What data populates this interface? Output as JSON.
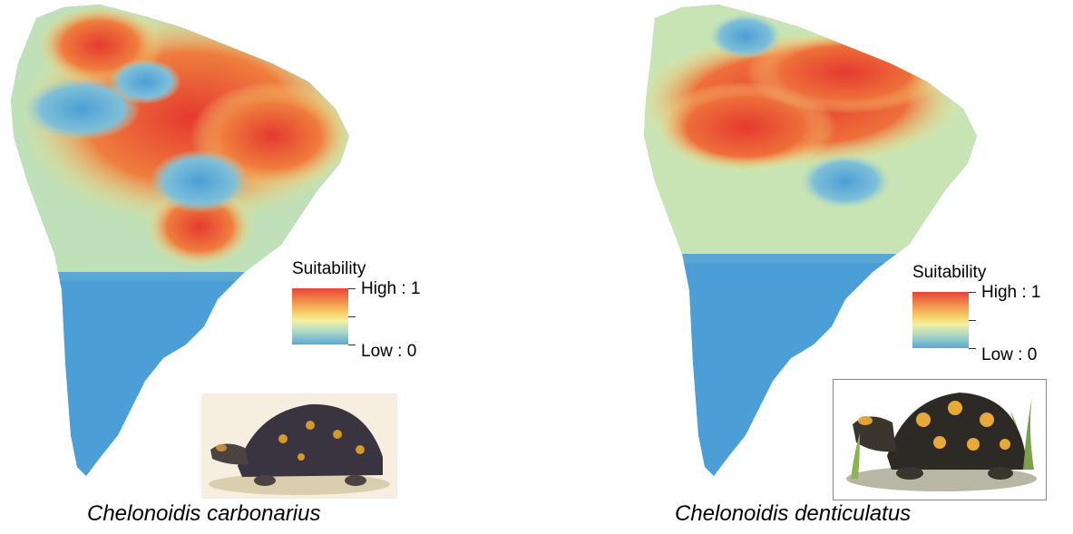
{
  "colors": {
    "low": "#4b9fd6",
    "mid": "#f4ec8a",
    "high": "#e53a2f",
    "ocean": "#ffffff"
  },
  "maps": [
    {
      "species": "Chelonoidis carbonarius",
      "legend": {
        "title": "Suitability",
        "high": "High : 1",
        "low": "Low : 0"
      },
      "illustration": "red-footed-tortoise-illustration"
    },
    {
      "species": "Chelonoidis denticulatus",
      "legend": {
        "title": "Suitability",
        "high": "High : 1",
        "low": "Low : 0"
      },
      "illustration": "yellow-footed-tortoise-illustration"
    }
  ]
}
